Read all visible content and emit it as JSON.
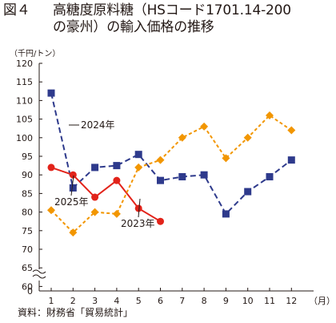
{
  "figure": {
    "number": "図４",
    "title_line1": "高糖度原料糖（HSコード1701.14-200",
    "title_line2": "の豪州）の輸入価格の推移"
  },
  "chart_data": {
    "type": "line",
    "ylabel": "（千円/トン）",
    "xlabel": "（月）",
    "categories": [
      "1",
      "2",
      "3",
      "4",
      "5",
      "6",
      "7",
      "8",
      "9",
      "10",
      "11",
      "12"
    ],
    "x": [
      1,
      2,
      3,
      4,
      5,
      6,
      7,
      8,
      9,
      10,
      11,
      12
    ],
    "ylim": [
      0,
      120
    ],
    "y_break": [
      0,
      60
    ],
    "yticks": [
      0,
      60,
      65,
      70,
      75,
      80,
      85,
      90,
      95,
      100,
      105,
      110,
      115,
      120
    ],
    "grid": false,
    "series": [
      {
        "name": "2024年",
        "color": "#2e3a8c",
        "marker": "square",
        "dash": "long",
        "values": [
          112,
          86.5,
          92,
          92.5,
          95.5,
          88.5,
          89.5,
          90,
          79.5,
          85.5,
          89.5,
          94
        ]
      },
      {
        "name": "2025年",
        "color": "#e2231a",
        "marker": "circle",
        "dash": "solid",
        "values": [
          92,
          90,
          84,
          88.5,
          81,
          77.5,
          null,
          null,
          null,
          null,
          null,
          null
        ]
      },
      {
        "name": "2023年",
        "color": "#f29600",
        "marker": "diamond",
        "dash": "short",
        "values": [
          80.5,
          74.5,
          80,
          79.5,
          92,
          94,
          100,
          103,
          94.5,
          100,
          106,
          102
        ]
      }
    ]
  },
  "source": "資料：財務省「貿易統計」"
}
